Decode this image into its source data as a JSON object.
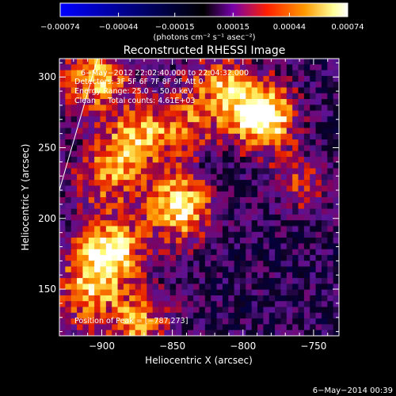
{
  "chart_data": {
    "type": "heatmap",
    "title": "Reconstructed RHESSI Image",
    "xlabel": "Heliocentric X (arcsec)",
    "ylabel": "Heliocentric Y (arcsec)",
    "xlim": [
      -930,
      -732
    ],
    "ylim": [
      117,
      313
    ],
    "x_ticks": [
      -900,
      -850,
      -800,
      -750
    ],
    "x_tick_labels": [
      "−900",
      "−850",
      "−800",
      "−750"
    ],
    "y_ticks": [
      150,
      200,
      250,
      300
    ],
    "y_tick_labels": [
      "150",
      "200",
      "250",
      "300"
    ],
    "colorbar": {
      "range": [
        -0.00074,
        0.00074
      ],
      "ticks": [
        -0.00074,
        -0.00044,
        -0.00015,
        0.00015,
        0.00044,
        0.00074
      ],
      "tick_labels": [
        "−0.00074",
        "−0.00044",
        "−0.00015",
        "0.00015",
        "0.00044",
        "0.00074"
      ],
      "units": "(photons cm⁻² s⁻¹ asec⁻²)",
      "colors": [
        "#0000ff",
        "#000066",
        "#000000",
        "#7700aa",
        "#ff2000",
        "#ff9900",
        "#ffff99",
        "#ffffff"
      ]
    },
    "annotations": {
      "time_range": "6−May−2012 22:02:40.000 to 22:04:32.000",
      "detectors": "Detectors: 3F 5F 6F 7F 8F 9F Att 0",
      "energy": "Energy Range: 25.0 − 50.0 keV",
      "clean": "Clean     Total counts: 4.61E+03",
      "peak": "Position of Peak = [−787,273]"
    },
    "sources": [
      {
        "x": -787,
        "y": 273,
        "value": 1.0
      },
      {
        "x": -845,
        "y": 208,
        "value": 0.8
      },
      {
        "x": -895,
        "y": 176,
        "value": 0.85
      },
      {
        "x": -912,
        "y": 148,
        "value": 0.5
      },
      {
        "x": -875,
        "y": 125,
        "value": 0.55
      },
      {
        "x": -875,
        "y": 258,
        "value": 0.6
      },
      {
        "x": -905,
        "y": 300,
        "value": 0.65
      },
      {
        "x": -895,
        "y": 230,
        "value": 0.5
      },
      {
        "x": -815,
        "y": 295,
        "value": 0.55
      },
      {
        "x": -760,
        "y": 225,
        "value": 0.35
      },
      {
        "x": -840,
        "y": 265,
        "value": 0.4
      }
    ],
    "limb_line": {
      "x": [
        -930,
        -903
      ],
      "y": [
        220,
        313
      ]
    }
  },
  "footer": {
    "date": "6−May−2014 00:39"
  }
}
